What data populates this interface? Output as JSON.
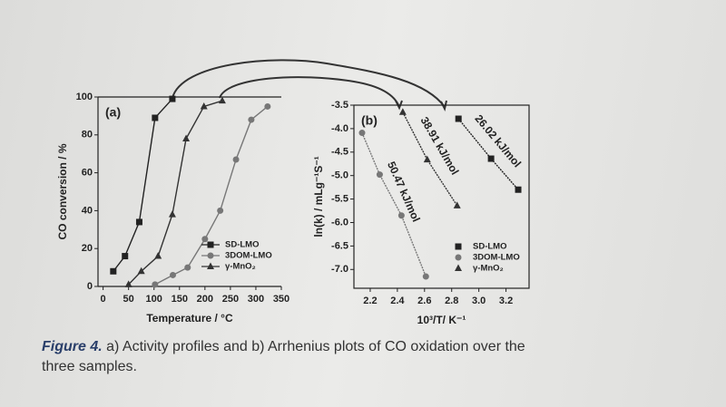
{
  "chart_data": [
    {
      "type": "line",
      "panel": "(a)",
      "x_label": "Temperature / °C",
      "y_label": "CO conversion / %",
      "xlim": [
        -10,
        350
      ],
      "xticks": [
        0,
        50,
        100,
        150,
        200,
        250,
        300,
        350
      ],
      "ylim": [
        0,
        100
      ],
      "yticks": [
        0,
        20,
        40,
        60,
        80,
        100
      ],
      "legend": "lower right",
      "series": [
        {
          "name": "SD-LMO",
          "color": "#222222",
          "marker": "square",
          "x": [
            20,
            43,
            71,
            102,
            136
          ],
          "values": [
            8,
            16,
            34,
            89,
            99
          ]
        },
        {
          "name": "3DOM-LMO",
          "color": "#777777",
          "marker": "circle",
          "x": [
            102,
            137,
            166,
            200,
            230,
            261,
            291,
            323
          ],
          "values": [
            1,
            6,
            10,
            25,
            40,
            67,
            88,
            95
          ]
        },
        {
          "name": "γ-MnO₂",
          "color": "#333333",
          "marker": "triangle",
          "x": [
            50,
            75,
            108,
            136,
            163,
            198,
            234
          ],
          "values": [
            1,
            8,
            16,
            38,
            78,
            95,
            98
          ]
        }
      ]
    },
    {
      "type": "line",
      "panel": "(b)",
      "x_label": "10³/T/ K⁻¹",
      "y_label": "ln(k) / mLg⁻¹S⁻¹",
      "xlim": [
        2.08,
        3.37
      ],
      "xticks": [
        2.2,
        2.4,
        2.6,
        2.8,
        {
          "value": 3,
          "label": "3.0"
        },
        3.2
      ],
      "ylim": [
        -7.4,
        -3.5
      ],
      "yticks": [
        -3.5,
        {
          "value": -4,
          "label": "-4.0"
        },
        -4.5,
        {
          "value": -5,
          "label": "-5.0"
        },
        -5.5,
        {
          "value": -6,
          "label": "-6.0"
        },
        -6.5,
        {
          "value": -7,
          "label": "-7.0"
        }
      ],
      "legend": "lower right",
      "annotations": [
        "26.02 kJ/mol",
        "50.47 kJ/mol",
        "38.91 kJ/mol"
      ],
      "series": [
        {
          "name": "SD-LMO",
          "color": "#222222",
          "marker": "square",
          "x": [
            2.85,
            3.09,
            3.29
          ],
          "values": [
            -3.79,
            -4.64,
            -5.3
          ]
        },
        {
          "name": "3DOM-LMO",
          "color": "#777777",
          "marker": "circle",
          "x": [
            2.14,
            2.27,
            2.43,
            2.61
          ],
          "values": [
            -4.09,
            -4.98,
            -5.85,
            -7.15
          ]
        },
        {
          "name": "γ-MnO₂",
          "color": "#333333",
          "marker": "triangle",
          "x": [
            2.44,
            2.62,
            2.84
          ],
          "values": [
            -3.65,
            -4.66,
            -5.64
          ]
        }
      ]
    }
  ],
  "caption": {
    "label": "Figure 4.",
    "text": "a) Activity profiles and b) Arrhenius plots of CO oxidation over the three samples."
  }
}
